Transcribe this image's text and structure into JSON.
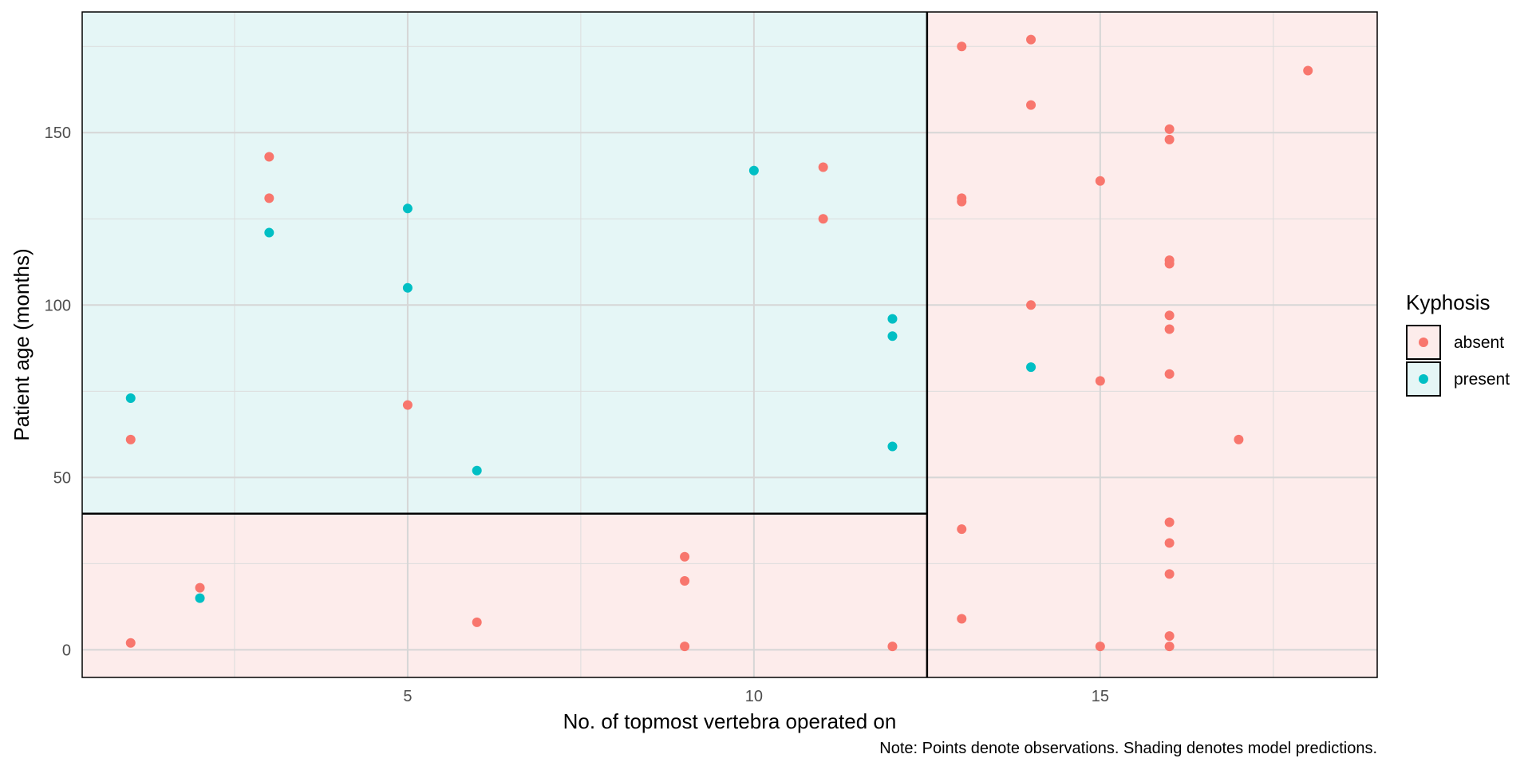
{
  "chart_data": {
    "type": "scatter",
    "xlabel": "No. of topmost vertebra operated on",
    "ylabel": "Patient age (months)",
    "caption": "Note: Points denote observations. Shading denotes model predictions.",
    "xlim": [
      0.3,
      19.0
    ],
    "ylim": [
      -8,
      185
    ],
    "x_ticks": [
      5,
      10,
      15
    ],
    "y_ticks": [
      0,
      50,
      100,
      150
    ],
    "x_minor": [
      2.5,
      7.5,
      12.5,
      17.5
    ],
    "y_minor": [
      25,
      75,
      125,
      175
    ],
    "legend": {
      "title": "Kyphosis",
      "position": "right",
      "entries": [
        {
          "label": "absent",
          "color": "#F8766D",
          "fill": "#FDECEB"
        },
        {
          "label": "present",
          "color": "#00BFC4",
          "fill": "#E5F6F6"
        }
      ]
    },
    "regions": [
      {
        "class": "present",
        "x_from": 0.3,
        "x_to": 12.5,
        "y_from": 39.5,
        "y_to": 185
      },
      {
        "class": "absent",
        "x_from": 0.3,
        "x_to": 12.5,
        "y_from": -8,
        "y_to": 39.5
      },
      {
        "class": "absent",
        "x_from": 12.5,
        "x_to": 19.0,
        "y_from": -8,
        "y_to": 185
      }
    ],
    "split_lines": [
      {
        "orientation": "vertical",
        "x": 12.5,
        "y_from": -8,
        "y_to": 185
      },
      {
        "orientation": "horizontal",
        "y": 39.5,
        "x_from": 0.3,
        "x_to": 12.5
      }
    ],
    "series": [
      {
        "name": "absent",
        "color": "#F8766D",
        "points": [
          [
            1,
            61
          ],
          [
            1,
            2
          ],
          [
            2,
            18
          ],
          [
            3,
            143
          ],
          [
            3,
            131
          ],
          [
            5,
            71
          ],
          [
            6,
            8
          ],
          [
            9,
            27
          ],
          [
            9,
            20
          ],
          [
            9,
            1
          ],
          [
            11,
            140
          ],
          [
            11,
            125
          ],
          [
            12,
            1
          ],
          [
            13,
            175
          ],
          [
            13,
            131
          ],
          [
            13,
            130
          ],
          [
            13,
            35
          ],
          [
            13,
            9
          ],
          [
            14,
            177
          ],
          [
            14,
            158
          ],
          [
            14,
            100
          ],
          [
            15,
            136
          ],
          [
            15,
            78
          ],
          [
            15,
            1
          ],
          [
            16,
            151
          ],
          [
            16,
            148
          ],
          [
            16,
            113
          ],
          [
            16,
            112
          ],
          [
            16,
            97
          ],
          [
            16,
            93
          ],
          [
            16,
            80
          ],
          [
            16,
            37
          ],
          [
            16,
            31
          ],
          [
            16,
            22
          ],
          [
            16,
            4
          ],
          [
            16,
            1
          ],
          [
            17,
            61
          ],
          [
            18,
            168
          ]
        ]
      },
      {
        "name": "present",
        "color": "#00BFC4",
        "points": [
          [
            1,
            73
          ],
          [
            2,
            15
          ],
          [
            3,
            121
          ],
          [
            5,
            128
          ],
          [
            5,
            105
          ],
          [
            6,
            52
          ],
          [
            10,
            139
          ],
          [
            12,
            96
          ],
          [
            12,
            91
          ],
          [
            12,
            59
          ],
          [
            14,
            82
          ]
        ]
      }
    ]
  }
}
